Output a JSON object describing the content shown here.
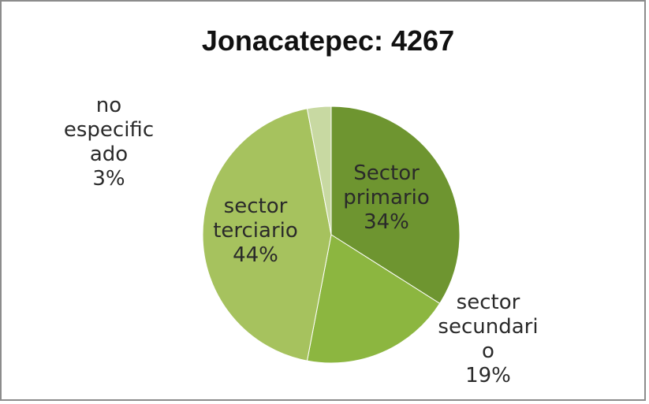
{
  "chart_data": {
    "type": "pie",
    "title": "Jonacatepec: 4267",
    "slices": [
      {
        "name": "Sector primario",
        "value": 34,
        "label_lines": [
          "Sector",
          "primario",
          "34%"
        ],
        "color": "#6e9530"
      },
      {
        "name": "sector secundario",
        "value": 19,
        "label_lines": [
          "sector",
          "secundari",
          "o",
          "19%"
        ],
        "color": "#8cb640"
      },
      {
        "name": "sector terciario",
        "value": 44,
        "label_lines": [
          "sector",
          "terciario",
          "44%"
        ],
        "color": "#a6c25e"
      },
      {
        "name": "no especificado",
        "value": 3,
        "label_lines": [
          "no",
          "especific",
          "ado",
          "3%"
        ],
        "color": "#c8d9a2"
      }
    ]
  }
}
